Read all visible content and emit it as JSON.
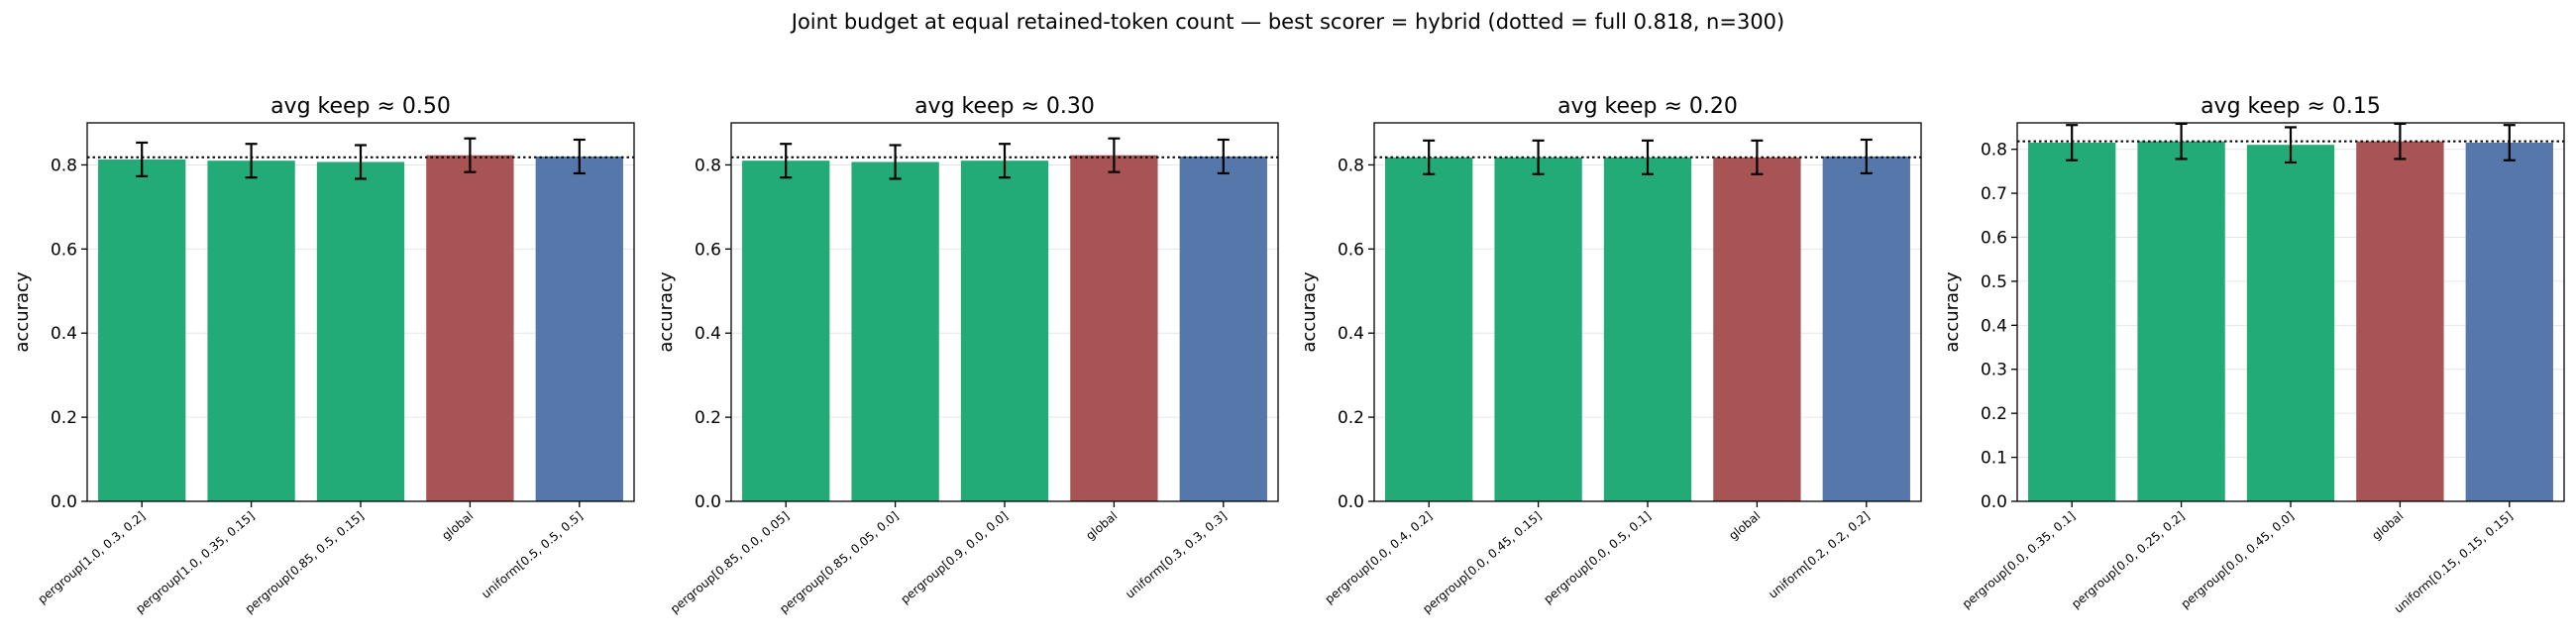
{
  "figure": {
    "suptitle": "Joint budget at equal retained-token count — best scorer = hybrid (dotted = full 0.818, n=300)",
    "colors": {
      "pergroup": "#22aa77",
      "global": "#a85454",
      "uniform": "#5577aa"
    }
  },
  "chart_data": [
    {
      "type": "bar",
      "title": "avg keep ≈ 0.50",
      "ylabel": "accuracy",
      "ylim": [
        0,
        0.9
      ],
      "yticks": [
        "0.0",
        "0.2",
        "0.4",
        "0.6",
        "0.8"
      ],
      "ytick_values": [
        0,
        0.2,
        0.4,
        0.6,
        0.8
      ],
      "grid": true,
      "reference_line": 0.818,
      "categories": [
        "pergroup[1.0, 0.3, 0.2]",
        "pergroup[1.0, 0.35, 0.15]",
        "pergroup[0.85, 0.5, 0.15]",
        "global",
        "uniform[0.5, 0.5, 0.5]"
      ],
      "values": [
        0.813,
        0.81,
        0.807,
        0.823,
        0.82
      ],
      "errors": [
        0.04,
        0.04,
        0.04,
        0.04,
        0.04
      ],
      "bar_colors": [
        "pergroup",
        "pergroup",
        "pergroup",
        "global",
        "uniform"
      ]
    },
    {
      "type": "bar",
      "title": "avg keep ≈ 0.30",
      "ylabel": "accuracy",
      "ylim": [
        0,
        0.9
      ],
      "yticks": [
        "0.0",
        "0.2",
        "0.4",
        "0.6",
        "0.8"
      ],
      "ytick_values": [
        0,
        0.2,
        0.4,
        0.6,
        0.8
      ],
      "grid": true,
      "reference_line": 0.818,
      "categories": [
        "pergroup[0.85, 0.0, 0.05]",
        "pergroup[0.85, 0.05, 0.0]",
        "pergroup[0.9, 0.0, 0.0]",
        "global",
        "uniform[0.3, 0.3, 0.3]"
      ],
      "values": [
        0.81,
        0.807,
        0.81,
        0.823,
        0.82
      ],
      "errors": [
        0.04,
        0.04,
        0.04,
        0.04,
        0.04
      ],
      "bar_colors": [
        "pergroup",
        "pergroup",
        "pergroup",
        "global",
        "uniform"
      ]
    },
    {
      "type": "bar",
      "title": "avg keep ≈ 0.20",
      "ylabel": "accuracy",
      "ylim": [
        0,
        0.9
      ],
      "yticks": [
        "0.0",
        "0.2",
        "0.4",
        "0.6",
        "0.8"
      ],
      "ytick_values": [
        0,
        0.2,
        0.4,
        0.6,
        0.8
      ],
      "grid": true,
      "reference_line": 0.818,
      "categories": [
        "pergroup[0.0, 0.4, 0.2]",
        "pergroup[0.0, 0.45, 0.15]",
        "pergroup[0.0, 0.5, 0.1]",
        "global",
        "uniform[0.2, 0.2, 0.2]"
      ],
      "values": [
        0.818,
        0.818,
        0.818,
        0.818,
        0.82
      ],
      "errors": [
        0.04,
        0.04,
        0.04,
        0.04,
        0.04
      ],
      "bar_colors": [
        "pergroup",
        "pergroup",
        "pergroup",
        "global",
        "uniform"
      ]
    },
    {
      "type": "bar",
      "title": "avg keep ≈ 0.15",
      "ylabel": "accuracy",
      "ylim": [
        0,
        0.86
      ],
      "yticks": [
        "0.0",
        "0.1",
        "0.2",
        "0.3",
        "0.4",
        "0.5",
        "0.6",
        "0.7",
        "0.8"
      ],
      "ytick_values": [
        0,
        0.1,
        0.2,
        0.3,
        0.4,
        0.5,
        0.6,
        0.7,
        0.8
      ],
      "grid": true,
      "reference_line": 0.818,
      "categories": [
        "pergroup[0.0, 0.35, 0.1]",
        "pergroup[0.0, 0.25, 0.2]",
        "pergroup[0.0, 0.45, 0.0]",
        "global",
        "uniform[0.15, 0.15, 0.15]"
      ],
      "values": [
        0.815,
        0.818,
        0.81,
        0.818,
        0.815
      ],
      "errors": [
        0.04,
        0.04,
        0.04,
        0.04,
        0.04
      ],
      "bar_colors": [
        "pergroup",
        "pergroup",
        "pergroup",
        "global",
        "uniform"
      ]
    }
  ]
}
